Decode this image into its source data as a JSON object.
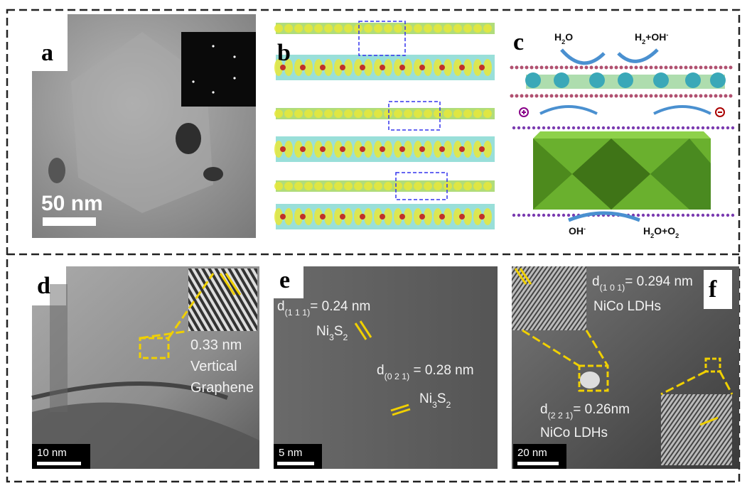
{
  "panels": [
    {
      "label": "a",
      "scale_bar": "50 nm"
    },
    {
      "label": "b"
    },
    {
      "label": "c",
      "annotations": [
        [
          {
            "text": "H"
          },
          {
            "sub": "2"
          },
          {
            "text": "O"
          }
        ],
        [
          {
            "text": "H"
          },
          {
            "sub": "2"
          },
          {
            "text": "+OH"
          },
          {
            "sup": "-"
          }
        ],
        [
          {
            "text": "OH"
          },
          {
            "sup": "-"
          }
        ],
        [
          {
            "text": "H"
          },
          {
            "sub": "2"
          },
          {
            "text": "O+O"
          },
          {
            "sub": "2"
          }
        ]
      ]
    },
    {
      "label": "d",
      "scale_bar": "10 nm",
      "annotations": [
        [
          {
            "text": "0.33 nm"
          }
        ],
        [
          {
            "text": "Vertical"
          }
        ],
        [
          {
            "text": "Graphene"
          }
        ]
      ]
    },
    {
      "label": "e",
      "scale_bar": "5 nm",
      "annotations": [
        [
          {
            "text": "d"
          },
          {
            "sub": "(1 1 1)"
          },
          {
            "text": "= 0.24 nm"
          }
        ],
        [
          {
            "text": "Ni"
          },
          {
            "sub": "3"
          },
          {
            "text": "S"
          },
          {
            "sub": "2"
          }
        ],
        [
          {
            "text": "d"
          },
          {
            "sub": "(0 2 1)"
          },
          {
            "text": " = 0.28 nm"
          }
        ],
        [
          {
            "text": "Ni"
          },
          {
            "sub": "3"
          },
          {
            "text": "S"
          },
          {
            "sub": "2"
          }
        ]
      ]
    },
    {
      "label": "f",
      "scale_bar": "20 nm",
      "annotations": [
        [
          {
            "text": "d"
          },
          {
            "sub": "(1 0 1)"
          },
          {
            "text": "= 0.294 nm"
          }
        ],
        [
          {
            "text": "NiCo LDHs"
          }
        ],
        [
          {
            "text": "d"
          },
          {
            "sub": "(2 2 1)"
          },
          {
            "text": "= 0.26nm"
          }
        ],
        [
          {
            "text": "NiCo LDHs"
          }
        ]
      ]
    }
  ]
}
